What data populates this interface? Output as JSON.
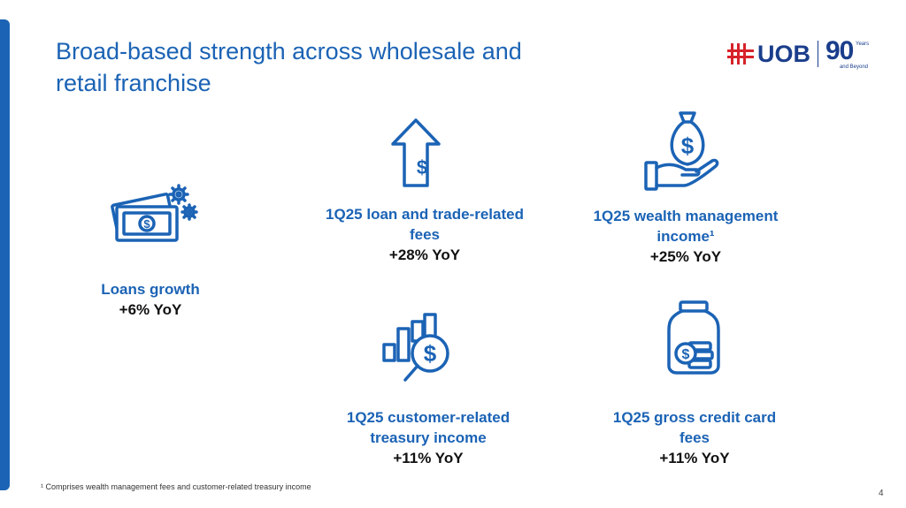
{
  "slide": {
    "title": "Broad-based strength across wholesale and\nretail franchise",
    "page_number": "4",
    "footnote": "¹ Comprises wealth management fees and customer-related treasury income"
  },
  "logo": {
    "brand": "UOB",
    "anniversary_number": "90",
    "anniversary_word": "Years",
    "anniversary_tagline": "and Beyond"
  },
  "colors": {
    "accent": "#1b63b5",
    "logo_navy": "#1a3e8c",
    "logo_red": "#d7222a",
    "text_dark": "#111111"
  },
  "metrics": {
    "loans": {
      "icon": "money-gears-icon",
      "label": "Loans growth",
      "value": "+6% YoY"
    },
    "loan_fees": {
      "icon": "arrow-up-dollar-icon",
      "label": "1Q25 loan and trade-related\nfees",
      "value": "+28% YoY"
    },
    "wealth": {
      "icon": "hand-moneybag-icon",
      "label": "1Q25 wealth management\nincome¹",
      "value": "+25% YoY"
    },
    "treasury": {
      "icon": "chart-magnifier-dollar-icon",
      "label": "1Q25 customer-related\ntreasury income",
      "value": "+11% YoY"
    },
    "cards": {
      "icon": "coin-jar-icon",
      "label": "1Q25 gross credit card\nfees",
      "value": "+11% YoY"
    }
  }
}
